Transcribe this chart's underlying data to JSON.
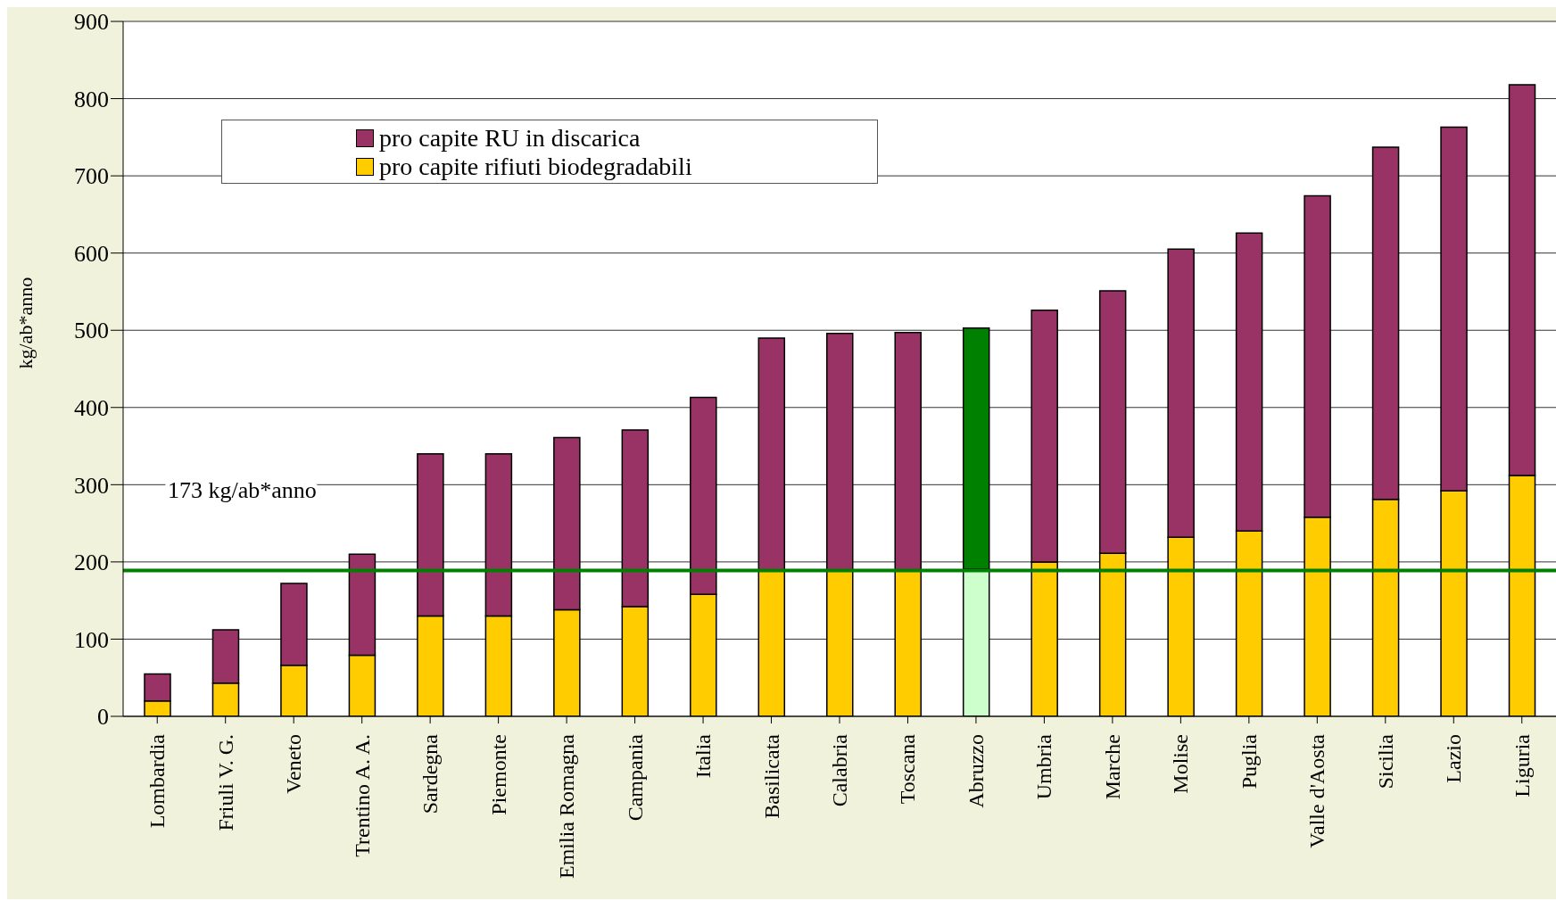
{
  "chart_data": {
    "type": "bar",
    "stacked": true,
    "ylabel": "kg/ab*anno",
    "categories": [
      "Lombardia",
      "Friuli V. G.",
      "Veneto",
      "Trentino A. A.",
      "Sardegna",
      "Piemonte",
      "Emilia Romagna",
      "Campania",
      "Italia",
      "Basilicata",
      "Calabria",
      "Toscana",
      "Abruzzo",
      "Umbria",
      "Marche",
      "Molise",
      "Puglia",
      "Valle d'Aosta",
      "Sicilia",
      "Lazio",
      "Liguria"
    ],
    "series": [
      {
        "name": "pro capite rifiuti biodegradabili",
        "color": "#ffcc00",
        "colors": [
          "#ffcc00",
          "#ffcc00",
          "#ffcc00",
          "#ffcc00",
          "#ffcc00",
          "#ffcc00",
          "#ffcc00",
          "#ffcc00",
          "#ffcc00",
          "#ffcc00",
          "#ffcc00",
          "#ffcc00",
          "#ccffcc",
          "#ffcc00",
          "#ffcc00",
          "#ffcc00",
          "#ffcc00",
          "#ffcc00",
          "#ffcc00",
          "#ffcc00",
          "#ffcc00"
        ],
        "values": [
          20,
          43,
          66,
          79,
          130,
          130,
          138,
          142,
          158,
          189,
          189,
          189,
          191,
          200,
          211,
          232,
          240,
          258,
          281,
          292,
          312
        ]
      },
      {
        "name": "pro capite RU in discarica",
        "color": "#993366",
        "colors": [
          "#993366",
          "#993366",
          "#993366",
          "#993366",
          "#993366",
          "#993366",
          "#993366",
          "#993366",
          "#993366",
          "#993366",
          "#993366",
          "#993366",
          "#008000",
          "#993366",
          "#993366",
          "#993366",
          "#993366",
          "#993366",
          "#993366",
          "#993366",
          "#993366"
        ],
        "values": [
          35,
          69,
          106,
          131,
          210,
          210,
          223,
          229,
          255,
          301,
          307,
          308,
          312,
          326,
          340,
          373,
          386,
          416,
          456,
          471,
          506
        ]
      }
    ],
    "ylim": [
      0,
      900
    ],
    "yticks": [
      0,
      100,
      200,
      300,
      400,
      500,
      600,
      700,
      800,
      900
    ],
    "grid": "y",
    "legend": "top",
    "ref_lines": [
      {
        "axis": "y",
        "value": 189,
        "label": "173 kg/ab*anno",
        "color": "#008000"
      }
    ]
  }
}
